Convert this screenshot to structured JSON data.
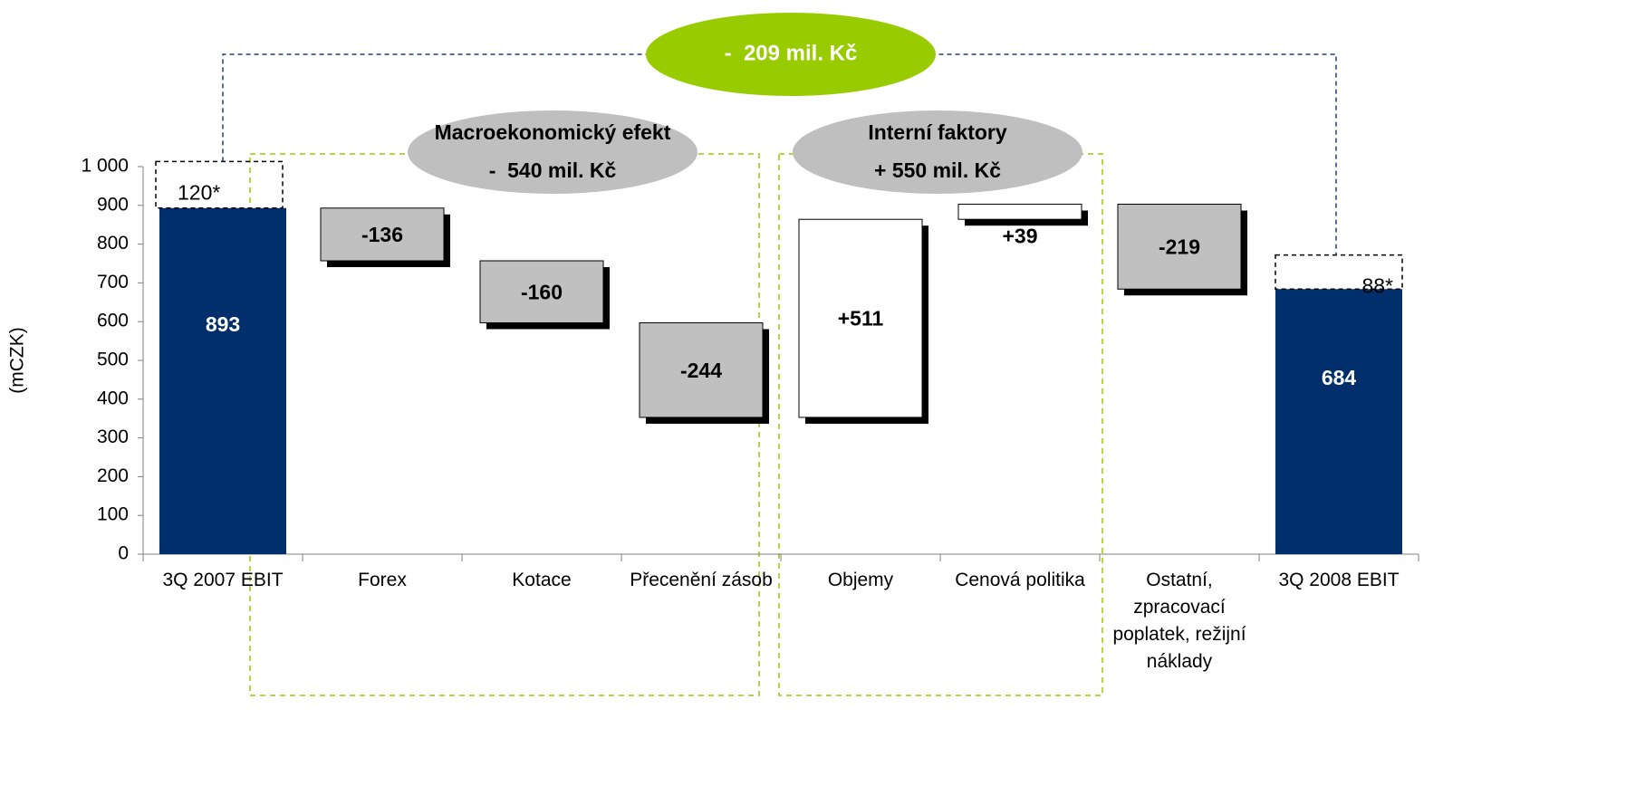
{
  "chart_data": {
    "type": "waterfall",
    "y_label": "(mCZK)",
    "categories": [
      "3Q 2007 EBIT",
      "Forex",
      "Kotace",
      "Přecenění zásob",
      "Objemy",
      "Cenová politika",
      "Ostatní, zpracovací poplatek, režijní náklady",
      "3Q 2008 EBIT"
    ],
    "values": [
      893,
      -136,
      -160,
      -244,
      511,
      39,
      -219,
      684
    ],
    "value_labels": [
      "893",
      "-136",
      "-160",
      "-244",
      "+511",
      "+39",
      "-219",
      "684"
    ],
    "adjustments": {
      "values": [
        120,
        null,
        null,
        null,
        null,
        null,
        null,
        88
      ],
      "value_labels": [
        "120*",
        null,
        null,
        null,
        null,
        null,
        null,
        "88*"
      ]
    },
    "total_color": "#002f6c",
    "decrease_color": "#c0c0c0",
    "increase_color": "#ffffff",
    "ylim": [
      0,
      1000
    ],
    "yticks": [
      0,
      100,
      200,
      300,
      400,
      500,
      600,
      700,
      800,
      900,
      {
        "value": 1000,
        "label": "1 000"
      }
    ],
    "groups": [
      {
        "title": "Macroekonomický efekt",
        "label": "-  540 mil. Kč",
        "color": "#bfbfbf"
      },
      {
        "title": "Interní faktory",
        "label": "+ 550 mil. Kč",
        "color": "#bfbfbf"
      }
    ],
    "total_change": {
      "label": "-  209 mil. Kč",
      "color": "#99cc00"
    }
  }
}
